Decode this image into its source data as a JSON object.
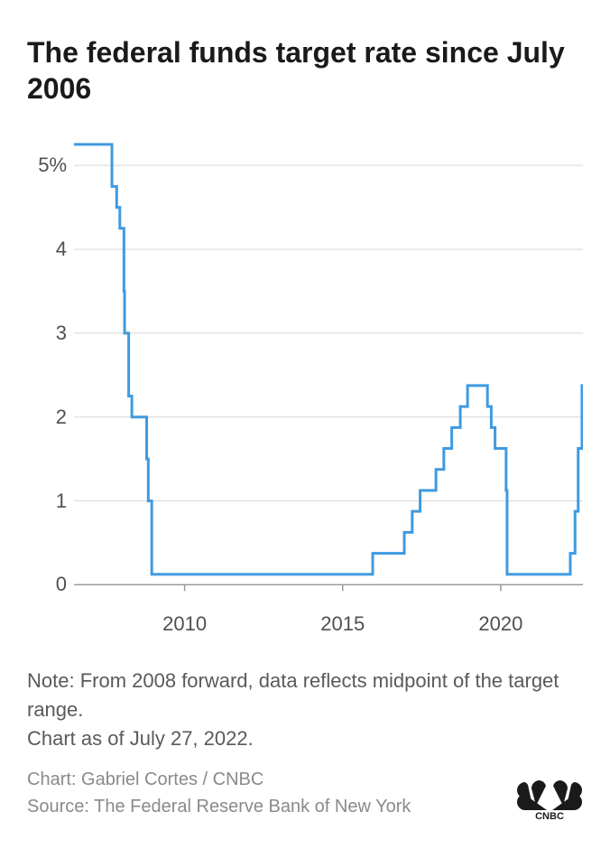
{
  "title": "The federal funds target rate since July 2006",
  "note1": "Note: From 2008 forward, data reflects midpoint of the target range.",
  "note2": "Chart as of July 27, 2022.",
  "credit_chart": "Chart: Gabriel Cortes / CNBC",
  "credit_source": "Source: The Federal Reserve Bank of New York",
  "logo_text": "CNBC",
  "chart": {
    "type": "step-line",
    "x_domain": [
      2006.5,
      2022.6
    ],
    "y_domain": [
      -0.2,
      5.4
    ],
    "y_ticks": [
      0,
      1,
      2,
      3,
      4,
      5
    ],
    "y_tick_labels": [
      "0",
      "1",
      "2",
      "3",
      "4",
      "5%"
    ],
    "x_ticks": [
      2010,
      2015,
      2020
    ],
    "x_tick_labels": [
      "2010",
      "2015",
      "2020"
    ],
    "grid_color": "#d7d7d7",
    "axis_color": "#999999",
    "line_color": "#3f9ae0",
    "line_width": 3,
    "background": "#ffffff",
    "label_fontsize": 22,
    "label_color": "#505050",
    "data": [
      [
        2006.5,
        5.25
      ],
      [
        2007.7,
        5.25
      ],
      [
        2007.7,
        4.75
      ],
      [
        2007.85,
        4.75
      ],
      [
        2007.85,
        4.5
      ],
      [
        2007.95,
        4.5
      ],
      [
        2007.95,
        4.25
      ],
      [
        2008.08,
        4.25
      ],
      [
        2008.08,
        3.5
      ],
      [
        2008.1,
        3.5
      ],
      [
        2008.1,
        3.0
      ],
      [
        2008.23,
        3.0
      ],
      [
        2008.23,
        2.25
      ],
      [
        2008.33,
        2.25
      ],
      [
        2008.33,
        2.0
      ],
      [
        2008.8,
        2.0
      ],
      [
        2008.8,
        1.5
      ],
      [
        2008.85,
        1.5
      ],
      [
        2008.85,
        1.0
      ],
      [
        2008.96,
        1.0
      ],
      [
        2008.96,
        0.125
      ],
      [
        2015.95,
        0.125
      ],
      [
        2015.95,
        0.375
      ],
      [
        2016.95,
        0.375
      ],
      [
        2016.95,
        0.625
      ],
      [
        2017.2,
        0.625
      ],
      [
        2017.2,
        0.875
      ],
      [
        2017.45,
        0.875
      ],
      [
        2017.45,
        1.125
      ],
      [
        2017.95,
        1.125
      ],
      [
        2017.95,
        1.375
      ],
      [
        2018.2,
        1.375
      ],
      [
        2018.2,
        1.625
      ],
      [
        2018.45,
        1.625
      ],
      [
        2018.45,
        1.875
      ],
      [
        2018.72,
        1.875
      ],
      [
        2018.72,
        2.125
      ],
      [
        2018.95,
        2.125
      ],
      [
        2018.95,
        2.375
      ],
      [
        2019.58,
        2.375
      ],
      [
        2019.58,
        2.125
      ],
      [
        2019.7,
        2.125
      ],
      [
        2019.7,
        1.875
      ],
      [
        2019.82,
        1.875
      ],
      [
        2019.82,
        1.625
      ],
      [
        2020.17,
        1.625
      ],
      [
        2020.17,
        1.125
      ],
      [
        2020.2,
        1.125
      ],
      [
        2020.2,
        0.125
      ],
      [
        2022.2,
        0.125
      ],
      [
        2022.2,
        0.375
      ],
      [
        2022.35,
        0.375
      ],
      [
        2022.35,
        0.875
      ],
      [
        2022.45,
        0.875
      ],
      [
        2022.45,
        1.625
      ],
      [
        2022.57,
        1.625
      ],
      [
        2022.57,
        2.375
      ],
      [
        2022.6,
        2.375
      ]
    ]
  }
}
